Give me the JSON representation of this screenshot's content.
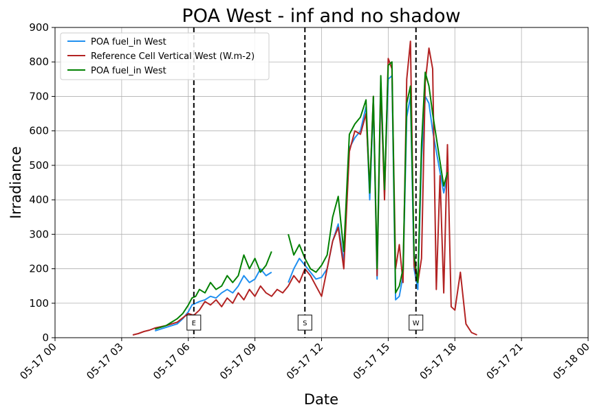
{
  "chart_data": {
    "type": "line",
    "title": "POA West - inf and no shadow",
    "xlabel": "Date",
    "ylabel": "Irradiance",
    "ylim": [
      0,
      900
    ],
    "xlim": [
      "05-17 00:00",
      "05-18 00:00"
    ],
    "grid": true,
    "legend_position": "top-left",
    "x_tick_labels": [
      "05-17 00",
      "05-17 03",
      "05-17 06",
      "05-17 09",
      "05-17 12",
      "05-17 15",
      "05-17 18",
      "05-17 21",
      "05-18 00"
    ],
    "y_tick_labels": [
      "0",
      "100",
      "200",
      "300",
      "400",
      "500",
      "600",
      "700",
      "800",
      "900"
    ],
    "vlines": [
      {
        "label": "E",
        "x": "05-17 06:15"
      },
      {
        "label": "S",
        "x": "05-17 11:15"
      },
      {
        "label": "W",
        "x": "05-17 16:15"
      }
    ],
    "series": [
      {
        "name": "POA fuel_in West",
        "color": "#1f8ff0",
        "points": [
          [
            "05-17 04:30",
            20
          ],
          [
            "05-17 04:45",
            25
          ],
          [
            "05-17 05:00",
            30
          ],
          [
            "05-17 05:15",
            35
          ],
          [
            "05-17 05:30",
            40
          ],
          [
            "05-17 05:45",
            55
          ],
          [
            "05-17 06:00",
            75
          ],
          [
            "05-17 06:10",
            95
          ],
          [
            "05-17 06:20",
            100
          ],
          [
            "05-17 06:30",
            105
          ],
          [
            "05-17 06:45",
            110
          ],
          [
            "05-17 07:00",
            120
          ],
          [
            "05-17 07:15",
            115
          ],
          [
            "05-17 07:30",
            130
          ],
          [
            "05-17 07:45",
            140
          ],
          [
            "05-17 08:00",
            130
          ],
          [
            "05-17 08:15",
            150
          ],
          [
            "05-17 08:30",
            180
          ],
          [
            "05-17 08:45",
            160
          ],
          [
            "05-17 09:00",
            170
          ],
          [
            "05-17 09:15",
            200
          ],
          [
            "05-17 09:30",
            180
          ],
          [
            "05-17 09:45",
            190
          ],
          [
            "05-17 10:30",
            160
          ],
          [
            "05-17 10:45",
            200
          ],
          [
            "05-17 11:00",
            230
          ],
          [
            "05-17 11:15",
            210
          ],
          [
            "05-17 11:30",
            190
          ],
          [
            "05-17 11:45",
            170
          ],
          [
            "05-17 12:00",
            175
          ],
          [
            "05-17 12:15",
            200
          ],
          [
            "05-17 12:30",
            280
          ],
          [
            "05-17 12:45",
            330
          ],
          [
            "05-17 13:00",
            220
          ],
          [
            "05-17 13:15",
            550
          ],
          [
            "05-17 13:30",
            580
          ],
          [
            "05-17 13:45",
            600
          ],
          [
            "05-17 14:00",
            670
          ],
          [
            "05-17 14:10",
            400
          ],
          [
            "05-17 14:20",
            680
          ],
          [
            "05-17 14:30",
            170
          ],
          [
            "05-17 14:40",
            720
          ],
          [
            "05-17 14:50",
            420
          ],
          [
            "05-17 15:00",
            750
          ],
          [
            "05-17 15:10",
            760
          ],
          [
            "05-17 15:20",
            110
          ],
          [
            "05-17 15:30",
            120
          ],
          [
            "05-17 15:40",
            180
          ],
          [
            "05-17 15:50",
            640
          ],
          [
            "05-17 16:00",
            700
          ],
          [
            "05-17 16:10",
            200
          ],
          [
            "05-17 16:20",
            140
          ],
          [
            "05-17 16:30",
            520
          ],
          [
            "05-17 16:40",
            700
          ],
          [
            "05-17 16:50",
            680
          ],
          [
            "05-17 17:00",
            600
          ],
          [
            "05-17 17:30",
            420
          ],
          [
            "05-17 17:40",
            470
          ]
        ]
      },
      {
        "name": "Reference Cell Vertical West (W.m-2)",
        "color": "#b22222",
        "points": [
          [
            "05-17 00:00",
            8
          ],
          [
            "05-17 03:30",
            8
          ],
          [
            "05-17 03:45",
            12
          ],
          [
            "05-17 04:00",
            18
          ],
          [
            "05-17 04:15",
            22
          ],
          [
            "05-17 04:30",
            28
          ],
          [
            "05-17 05:00",
            35
          ],
          [
            "05-17 05:30",
            45
          ],
          [
            "05-17 06:00",
            70
          ],
          [
            "05-17 06:15",
            65
          ],
          [
            "05-17 06:30",
            80
          ],
          [
            "05-17 06:45",
            105
          ],
          [
            "05-17 07:00",
            95
          ],
          [
            "05-17 07:15",
            110
          ],
          [
            "05-17 07:30",
            90
          ],
          [
            "05-17 07:45",
            115
          ],
          [
            "05-17 08:00",
            100
          ],
          [
            "05-17 08:15",
            130
          ],
          [
            "05-17 08:30",
            110
          ],
          [
            "05-17 08:45",
            140
          ],
          [
            "05-17 09:00",
            120
          ],
          [
            "05-17 09:15",
            150
          ],
          [
            "05-17 09:30",
            130
          ],
          [
            "05-17 09:45",
            120
          ],
          [
            "05-17 10:00",
            140
          ],
          [
            "05-17 10:15",
            130
          ],
          [
            "05-17 10:30",
            150
          ],
          [
            "05-17 10:45",
            180
          ],
          [
            "05-17 11:00",
            160
          ],
          [
            "05-17 11:15",
            200
          ],
          [
            "05-17 11:30",
            180
          ],
          [
            "05-17 11:45",
            150
          ],
          [
            "05-17 12:00",
            120
          ],
          [
            "05-17 12:15",
            200
          ],
          [
            "05-17 12:30",
            280
          ],
          [
            "05-17 12:45",
            320
          ],
          [
            "05-17 13:00",
            200
          ],
          [
            "05-17 13:15",
            540
          ],
          [
            "05-17 13:30",
            600
          ],
          [
            "05-17 13:45",
            590
          ],
          [
            "05-17 14:00",
            650
          ],
          [
            "05-17 14:10",
            430
          ],
          [
            "05-17 14:20",
            700
          ],
          [
            "05-17 14:30",
            180
          ],
          [
            "05-17 14:40",
            740
          ],
          [
            "05-17 14:50",
            400
          ],
          [
            "05-17 15:00",
            810
          ],
          [
            "05-17 15:10",
            780
          ],
          [
            "05-17 15:20",
            200
          ],
          [
            "05-17 15:30",
            270
          ],
          [
            "05-17 15:40",
            160
          ],
          [
            "05-17 15:50",
            750
          ],
          [
            "05-17 16:00",
            860
          ],
          [
            "05-17 16:10",
            210
          ],
          [
            "05-17 16:20",
            160
          ],
          [
            "05-17 16:30",
            230
          ],
          [
            "05-17 16:40",
            740
          ],
          [
            "05-17 16:50",
            840
          ],
          [
            "05-17 17:00",
            780
          ],
          [
            "05-17 17:10",
            140
          ],
          [
            "05-17 17:20",
            470
          ],
          [
            "05-17 17:30",
            130
          ],
          [
            "05-17 17:40",
            560
          ],
          [
            "05-17 17:50",
            90
          ],
          [
            "05-17 18:00",
            80
          ],
          [
            "05-17 18:15",
            190
          ],
          [
            "05-17 18:30",
            40
          ],
          [
            "05-17 18:45",
            15
          ],
          [
            "05-17 19:00",
            8
          ],
          [
            "05-18 00:00",
            8
          ]
        ]
      },
      {
        "name": "POA fuel_in West",
        "color": "#008000",
        "points": [
          [
            "05-17 04:30",
            25
          ],
          [
            "05-17 04:45",
            30
          ],
          [
            "05-17 05:00",
            35
          ],
          [
            "05-17 05:15",
            45
          ],
          [
            "05-17 05:30",
            55
          ],
          [
            "05-17 05:45",
            70
          ],
          [
            "05-17 06:00",
            95
          ],
          [
            "05-17 06:10",
            115
          ],
          [
            "05-17 06:20",
            120
          ],
          [
            "05-17 06:30",
            140
          ],
          [
            "05-17 06:45",
            130
          ],
          [
            "05-17 07:00",
            160
          ],
          [
            "05-17 07:15",
            140
          ],
          [
            "05-17 07:30",
            150
          ],
          [
            "05-17 07:45",
            180
          ],
          [
            "05-17 08:00",
            160
          ],
          [
            "05-17 08:15",
            180
          ],
          [
            "05-17 08:30",
            240
          ],
          [
            "05-17 08:45",
            200
          ],
          [
            "05-17 09:00",
            230
          ],
          [
            "05-17 09:15",
            190
          ],
          [
            "05-17 09:30",
            210
          ],
          [
            "05-17 09:45",
            250
          ],
          [
            "05-17 10:30",
            300
          ],
          [
            "05-17 10:45",
            240
          ],
          [
            "05-17 11:00",
            270
          ],
          [
            "05-17 11:15",
            230
          ],
          [
            "05-17 11:30",
            200
          ],
          [
            "05-17 11:45",
            190
          ],
          [
            "05-17 12:00",
            210
          ],
          [
            "05-17 12:15",
            240
          ],
          [
            "05-17 12:30",
            350
          ],
          [
            "05-17 12:45",
            410
          ],
          [
            "05-17 13:00",
            250
          ],
          [
            "05-17 13:15",
            590
          ],
          [
            "05-17 13:30",
            620
          ],
          [
            "05-17 13:45",
            640
          ],
          [
            "05-17 14:00",
            690
          ],
          [
            "05-17 14:10",
            420
          ],
          [
            "05-17 14:20",
            700
          ],
          [
            "05-17 14:30",
            200
          ],
          [
            "05-17 14:40",
            760
          ],
          [
            "05-17 14:50",
            430
          ],
          [
            "05-17 15:00",
            790
          ],
          [
            "05-17 15:10",
            800
          ],
          [
            "05-17 15:20",
            130
          ],
          [
            "05-17 15:30",
            150
          ],
          [
            "05-17 15:40",
            200
          ],
          [
            "05-17 15:50",
            680
          ],
          [
            "05-17 16:00",
            730
          ],
          [
            "05-17 16:10",
            240
          ],
          [
            "05-17 16:20",
            160
          ],
          [
            "05-17 16:30",
            560
          ],
          [
            "05-17 16:40",
            770
          ],
          [
            "05-17 16:50",
            730
          ],
          [
            "05-17 17:00",
            650
          ],
          [
            "05-17 17:30",
            440
          ],
          [
            "05-17 17:40",
            480
          ]
        ]
      }
    ]
  }
}
